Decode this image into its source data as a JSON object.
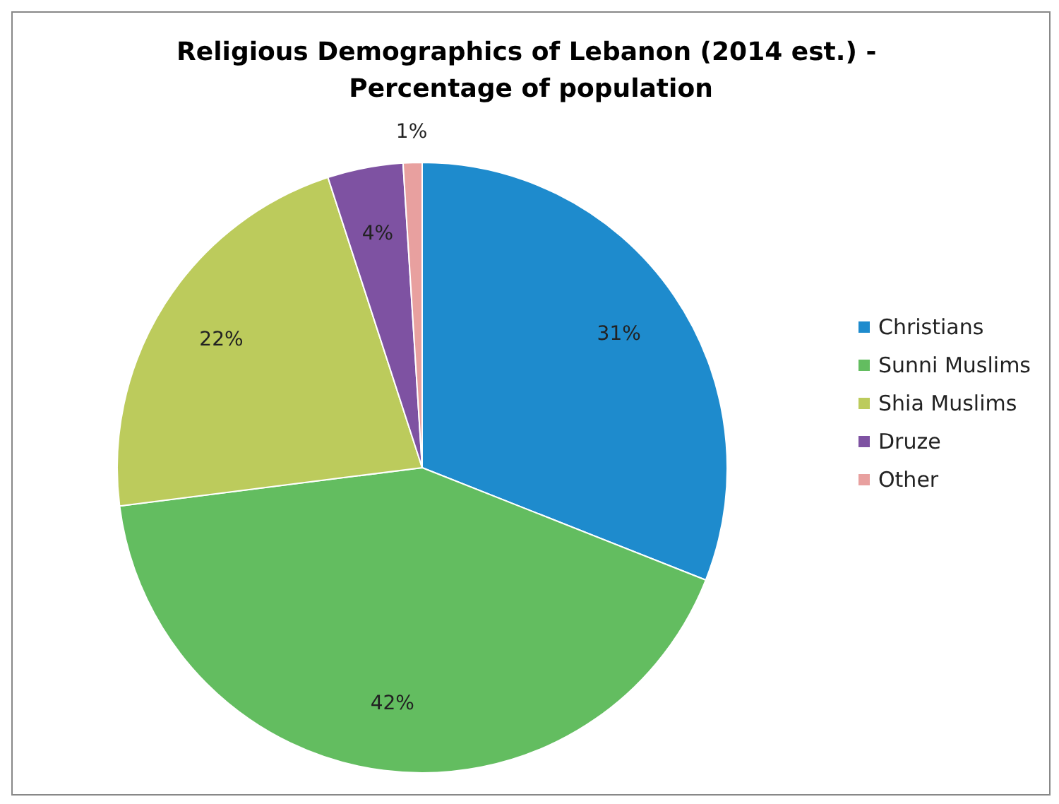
{
  "chart_data": {
    "type": "pie",
    "title": "Religious Demographics of Lebanon (2014 est.) - Percentage of population",
    "categories": [
      "Christians",
      "Sunni Muslims",
      "Shia Muslims",
      "Druze",
      "Other"
    ],
    "values": [
      31,
      42,
      22,
      4,
      1
    ],
    "colors": [
      "#1e8bcd",
      "#63bd60",
      "#bccb5c",
      "#7e52a2",
      "#e8a09f"
    ],
    "value_labels": [
      "31%",
      "42%",
      "22%",
      "4%",
      "1%"
    ],
    "legend": "right"
  }
}
